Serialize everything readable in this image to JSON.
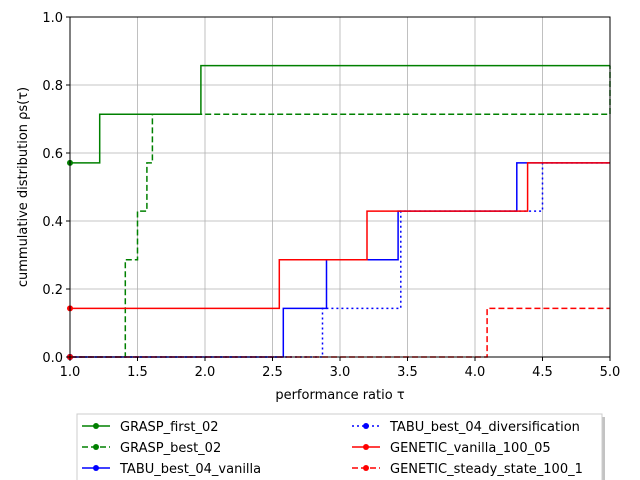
{
  "chart_data": {
    "type": "line",
    "step": true,
    "xlabel": "performance ratio τ",
    "ylabel": "cummulative distribution ρs(τ)",
    "xlim": [
      1.0,
      5.0
    ],
    "ylim": [
      0.0,
      1.0
    ],
    "xticks": [
      "1.0",
      "1.5",
      "2.0",
      "2.5",
      "3.0",
      "3.5",
      "4.0",
      "4.5",
      "5.0"
    ],
    "yticks": [
      "0.0",
      "0.2",
      "0.4",
      "0.6",
      "0.8",
      "1.0"
    ],
    "grid": true,
    "legend_position": "bottom-center",
    "series": [
      {
        "name": "GRASP_first_02",
        "color": "#008000",
        "linestyle": "solid",
        "points": [
          [
            1.0,
            0.571
          ],
          [
            1.22,
            0.571
          ],
          [
            1.22,
            0.714
          ],
          [
            1.97,
            0.714
          ],
          [
            1.97,
            0.857
          ],
          [
            5.0,
            0.857
          ],
          [
            5.0,
            0.857
          ]
        ]
      },
      {
        "name": "GRASP_best_02",
        "color": "#008000",
        "linestyle": "dashed",
        "points": [
          [
            1.0,
            0.0
          ],
          [
            1.41,
            0.0
          ],
          [
            1.41,
            0.286
          ],
          [
            1.5,
            0.286
          ],
          [
            1.5,
            0.429
          ],
          [
            1.57,
            0.429
          ],
          [
            1.57,
            0.571
          ],
          [
            1.61,
            0.571
          ],
          [
            1.61,
            0.714
          ],
          [
            5.0,
            0.714
          ],
          [
            5.0,
            0.857
          ]
        ]
      },
      {
        "name": "TABU_best_04_vanilla",
        "color": "#0000ff",
        "linestyle": "solid",
        "points": [
          [
            1.0,
            0.0
          ],
          [
            2.58,
            0.0
          ],
          [
            2.58,
            0.143
          ],
          [
            2.9,
            0.143
          ],
          [
            2.9,
            0.286
          ],
          [
            3.43,
            0.286
          ],
          [
            3.43,
            0.429
          ],
          [
            4.31,
            0.429
          ],
          [
            4.31,
            0.571
          ],
          [
            5.0,
            0.571
          ]
        ]
      },
      {
        "name": "TABU_best_04_diversification",
        "color": "#0000ff",
        "linestyle": "dotted",
        "points": [
          [
            1.0,
            0.0
          ],
          [
            2.87,
            0.0
          ],
          [
            2.87,
            0.143
          ],
          [
            3.45,
            0.143
          ],
          [
            3.45,
            0.429
          ],
          [
            4.5,
            0.429
          ],
          [
            4.5,
            0.571
          ],
          [
            5.0,
            0.571
          ]
        ]
      },
      {
        "name": "GENETIC_vanilla_100_05",
        "color": "#ff0000",
        "linestyle": "solid",
        "points": [
          [
            1.0,
            0.143
          ],
          [
            2.55,
            0.143
          ],
          [
            2.55,
            0.286
          ],
          [
            3.2,
            0.286
          ],
          [
            3.2,
            0.429
          ],
          [
            4.39,
            0.429
          ],
          [
            4.39,
            0.571
          ],
          [
            5.0,
            0.571
          ]
        ]
      },
      {
        "name": "GENETIC_steady_state_100_1",
        "color": "#ff0000",
        "linestyle": "dashed",
        "points": [
          [
            1.0,
            0.0
          ],
          [
            4.09,
            0.0
          ],
          [
            4.09,
            0.143
          ],
          [
            5.0,
            0.143
          ]
        ]
      }
    ]
  }
}
